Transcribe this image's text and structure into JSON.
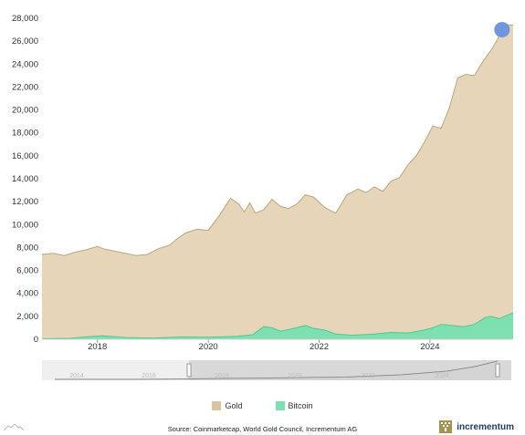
{
  "chart_data": {
    "type": "area",
    "stacked": false,
    "title": "",
    "xlabel": "",
    "ylabel": "",
    "ylim": [
      0,
      28000
    ],
    "yticks": [
      0,
      2000,
      4000,
      6000,
      8000,
      10000,
      12000,
      14000,
      16000,
      18000,
      20000,
      22000,
      24000,
      26000,
      28000
    ],
    "ytick_labels": [
      "0",
      "2,000",
      "4,000",
      "6,000",
      "8,000",
      "10,000",
      "12,000",
      "14,000",
      "16,000",
      "18,000",
      "20,000",
      "22,000",
      "24,000",
      "26,000",
      "28,000"
    ],
    "xlim": [
      2017.0,
      2025.5
    ],
    "xtick_labels": [
      "2018",
      "2020",
      "2022",
      "2024"
    ],
    "grid": false,
    "legend_position": "bottom-center",
    "series": [
      {
        "name": "Gold",
        "color": "#e6d5b8",
        "line_color": "#b8a77e",
        "x": [
          2017.0,
          2017.2,
          2017.4,
          2017.6,
          2017.8,
          2018.0,
          2018.1,
          2018.3,
          2018.5,
          2018.7,
          2018.9,
          2019.1,
          2019.3,
          2019.45,
          2019.6,
          2019.8,
          2020.0,
          2020.2,
          2020.4,
          2020.55,
          2020.65,
          2020.75,
          2020.85,
          2021.0,
          2021.15,
          2021.3,
          2021.45,
          2021.6,
          2021.75,
          2021.9,
          2022.1,
          2022.3,
          2022.5,
          2022.7,
          2022.85,
          2023.0,
          2023.15,
          2023.3,
          2023.45,
          2023.6,
          2023.75,
          2023.9,
          2024.05,
          2024.2,
          2024.35,
          2024.5,
          2024.65,
          2024.8,
          2024.95,
          2025.1,
          2025.2,
          2025.3,
          2025.4,
          2025.5
        ],
        "y": [
          7400,
          7500,
          7300,
          7600,
          7800,
          8100,
          7900,
          7700,
          7500,
          7300,
          7400,
          7900,
          8200,
          8800,
          9300,
          9600,
          9500,
          10800,
          12300,
          11800,
          11100,
          11900,
          11000,
          11300,
          12200,
          11600,
          11400,
          11800,
          12600,
          12400,
          11500,
          11000,
          12600,
          13100,
          12800,
          13300,
          12900,
          13800,
          14100,
          15200,
          16000,
          17200,
          18600,
          18400,
          20200,
          22800,
          23100,
          23000,
          24200,
          25200,
          26000,
          27000,
          27400,
          27400
        ]
      },
      {
        "name": "Bitcoin",
        "color": "#7ee0b0",
        "line_color": "#4fc990",
        "x": [
          2017.0,
          2017.5,
          2017.9,
          2018.1,
          2018.5,
          2019.0,
          2019.5,
          2020.0,
          2020.5,
          2020.8,
          2021.0,
          2021.15,
          2021.3,
          2021.5,
          2021.75,
          2021.9,
          2022.1,
          2022.3,
          2022.6,
          2023.0,
          2023.3,
          2023.6,
          2023.9,
          2024.05,
          2024.2,
          2024.4,
          2024.6,
          2024.8,
          2025.0,
          2025.1,
          2025.25,
          2025.4,
          2025.5
        ],
        "y": [
          50,
          80,
          250,
          300,
          150,
          100,
          200,
          180,
          250,
          400,
          1100,
          1000,
          700,
          900,
          1200,
          950,
          800,
          450,
          350,
          450,
          600,
          550,
          800,
          1000,
          1300,
          1200,
          1100,
          1300,
          1900,
          2000,
          1800,
          2100,
          2300
        ]
      }
    ],
    "annotations": [
      {
        "type": "highlight-dot",
        "x": 2025.3,
        "y": 27000,
        "color": "#6f96de"
      }
    ],
    "navigator": {
      "tick_labels": [
        "2014",
        "2016",
        "2018",
        "2020",
        "2022",
        "2024"
      ],
      "colors": {
        "track": "#e4e4e4",
        "selection": "#c8c8c8",
        "line": "#777777"
      }
    }
  },
  "legend": {
    "gold_label": "Gold",
    "bitcoin_label": "Bitcoin",
    "gold_color": "#d9c49e",
    "bitcoin_color": "#7ee0b0"
  },
  "source_text": "Source: Coinmarketcap, World Gold Council, Incrementum AG",
  "brand": {
    "name": "incrementum",
    "color": "#1f3b64",
    "logo_color": "#a8924f"
  }
}
